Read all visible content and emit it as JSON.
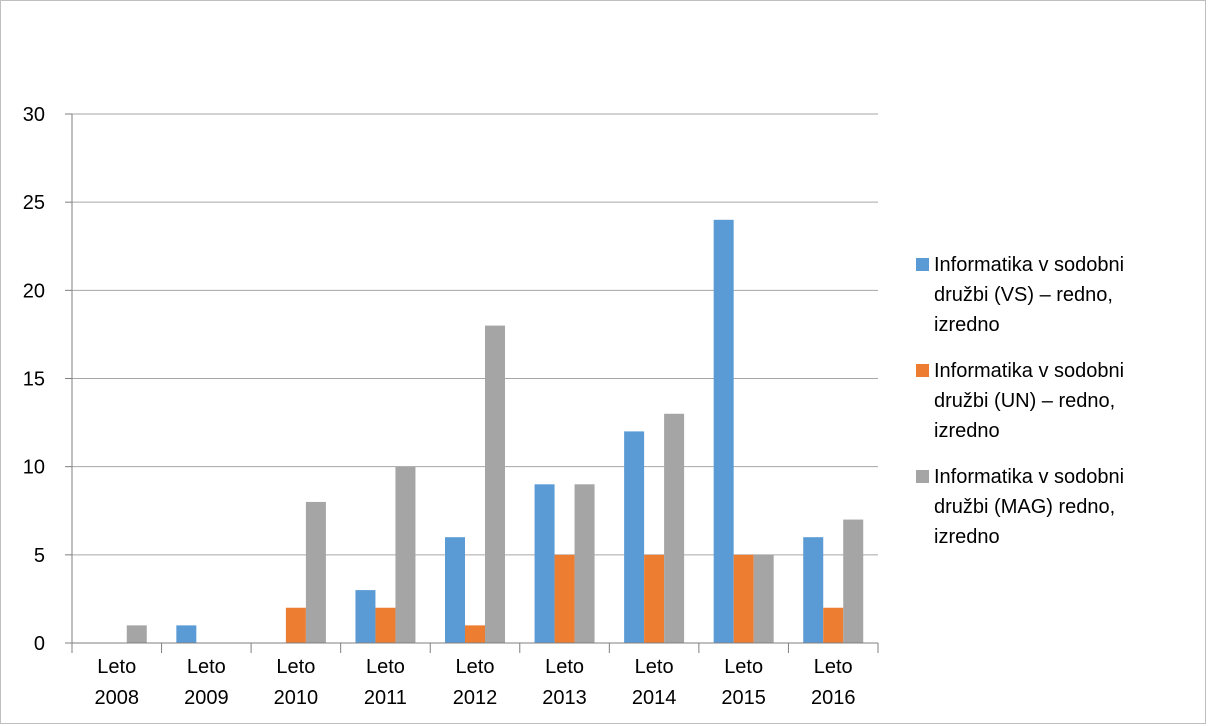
{
  "chart_data": {
    "type": "bar",
    "categories": [
      [
        "Leto",
        "2008"
      ],
      [
        "Leto",
        "2009"
      ],
      [
        "Leto",
        "2010"
      ],
      [
        "Leto",
        "2011"
      ],
      [
        "Leto",
        "2012"
      ],
      [
        "Leto",
        "2013"
      ],
      [
        "Leto",
        "2014"
      ],
      [
        "Leto",
        "2015"
      ],
      [
        "Leto",
        "2016"
      ]
    ],
    "series": [
      {
        "name": "Informatika v sodobni družbi (VS) – redno, izredno",
        "color": "#5b9bd5",
        "values": [
          0,
          1,
          0,
          3,
          6,
          9,
          12,
          24,
          6
        ]
      },
      {
        "name": "Informatika v sodobni družbi (UN) – redno, izredno",
        "color": "#ed7d31",
        "values": [
          0,
          0,
          2,
          2,
          1,
          5,
          5,
          5,
          2
        ]
      },
      {
        "name": "Informatika v sodobni družbi (MAG) redno, izredno",
        "color": "#a5a5a5",
        "values": [
          1,
          0,
          8,
          10,
          18,
          9,
          13,
          5,
          7
        ]
      }
    ],
    "ylim": [
      0,
      30
    ],
    "yticks": [
      0,
      5,
      10,
      15,
      20,
      25,
      30
    ],
    "grid": true,
    "legend_position": "right",
    "title": "",
    "xlabel": "",
    "ylabel": ""
  }
}
